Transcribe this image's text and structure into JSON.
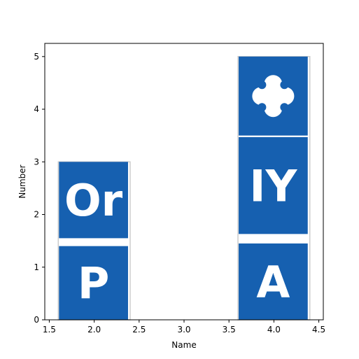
{
  "chart_data": {
    "type": "bar",
    "title": "",
    "xlabel": "Name",
    "ylabel": "Number",
    "xlim": [
      1.45,
      4.55
    ],
    "ylim": [
      0,
      5.25
    ],
    "xticks": [
      1.5,
      2.0,
      2.5,
      3.0,
      3.5,
      4.0,
      4.5
    ],
    "xtick_labels": [
      "1.5",
      "2.0",
      "2.5",
      "3.0",
      "3.5",
      "4.0",
      "4.5"
    ],
    "yticks": [
      0,
      1,
      2,
      3,
      4,
      5
    ],
    "ytick_labels": [
      "0",
      "1",
      "2",
      "3",
      "4",
      "5"
    ],
    "grid": false,
    "bar_width": 0.8,
    "bars": [
      {
        "x": 2,
        "value": 3,
        "tiles": [
          {
            "y_from": 0,
            "y_to": 1.4,
            "text": "P",
            "icon": ""
          },
          {
            "y_from": 1.55,
            "y_to": 3.0,
            "text": "Or",
            "icon": ""
          }
        ]
      },
      {
        "x": 4,
        "value": 5,
        "tiles": [
          {
            "y_from": 0,
            "y_to": 1.45,
            "text": "A",
            "icon": ""
          },
          {
            "y_from": 1.63,
            "y_to": 3.47,
            "text": "IY",
            "icon": ""
          },
          {
            "y_from": 3.5,
            "y_to": 5.0,
            "text": "",
            "icon": "four-leaf-clover-icon"
          }
        ]
      }
    ],
    "colors": {
      "tile_fill": "#1660b0",
      "tile_text": "#ffffff",
      "bar_outline": "#cccccc",
      "axis": "#000000"
    }
  }
}
